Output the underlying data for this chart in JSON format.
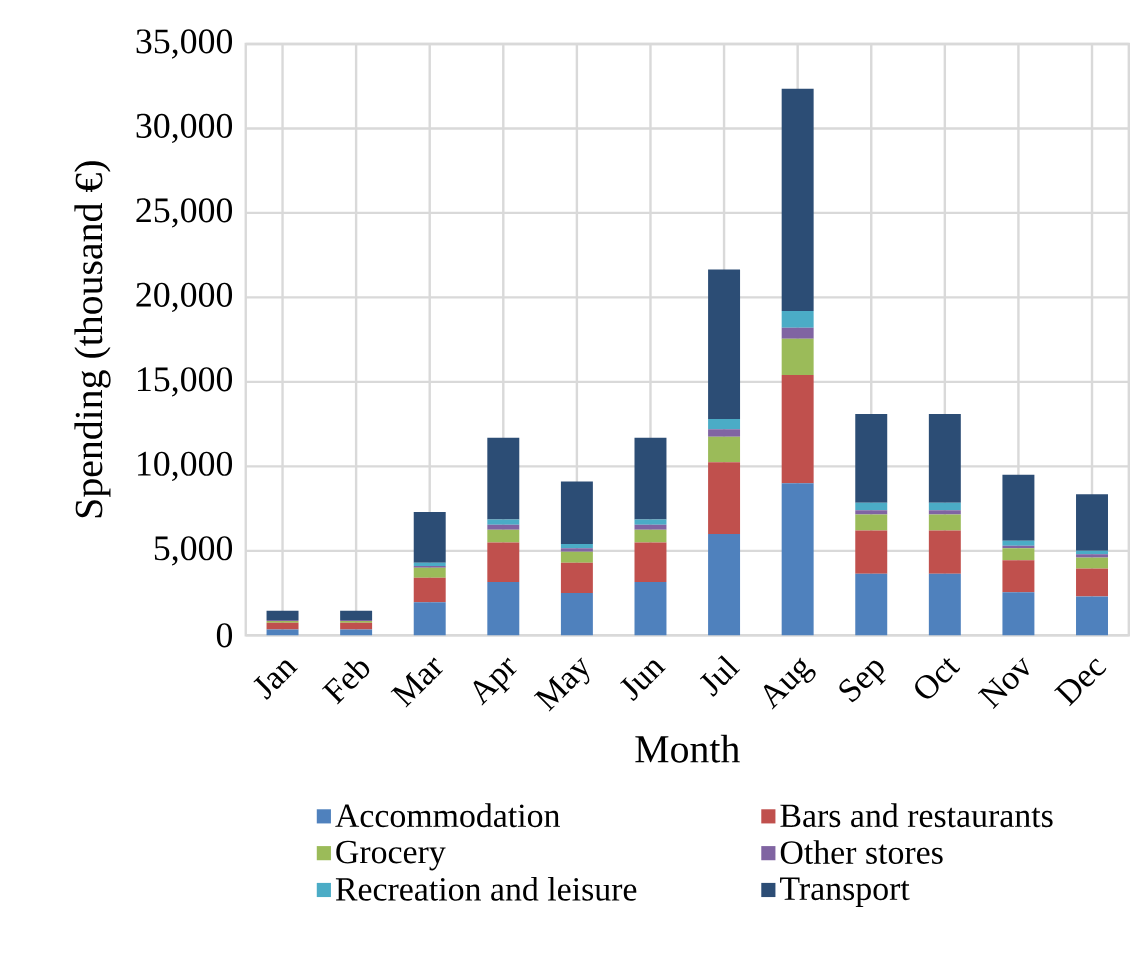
{
  "chart_data": {
    "type": "bar",
    "stacked": true,
    "xlabel": "Month",
    "ylabel": "Spending (thousand €)",
    "categories": [
      "Jan",
      "Feb",
      "Mar",
      "Apr",
      "May",
      "Jun",
      "Jul",
      "Aug",
      "Sep",
      "Oct",
      "Nov",
      "Dec"
    ],
    "series": [
      {
        "name": "Accommodation",
        "color": "#4f81bd",
        "values": [
          350,
          350,
          1950,
          3150,
          2500,
          3150,
          6000,
          9000,
          3650,
          3650,
          2550,
          2300
        ]
      },
      {
        "name": "Bars and restaurants",
        "color": "#c0504d",
        "values": [
          400,
          400,
          1450,
          2350,
          1800,
          2350,
          4250,
          6400,
          2550,
          2550,
          1900,
          1650
        ]
      },
      {
        "name": "Grocery",
        "color": "#9bbb59",
        "values": [
          100,
          100,
          600,
          750,
          650,
          750,
          1500,
          2150,
          950,
          950,
          700,
          650
        ]
      },
      {
        "name": "Other stores",
        "color": "#8064a2",
        "values": [
          50,
          50,
          100,
          300,
          200,
          300,
          450,
          650,
          250,
          250,
          150,
          200
        ]
      },
      {
        "name": "Recreation and leisure",
        "color": "#4bacc6",
        "values": [
          null,
          null,
          200,
          300,
          250,
          300,
          600,
          1000,
          450,
          450,
          300,
          200
        ]
      },
      {
        "name": "Transport",
        "color": "#2c4d75",
        "values": [
          550,
          550,
          3000,
          4850,
          3700,
          4850,
          8850,
          13150,
          5250,
          5250,
          3900,
          3350
        ]
      }
    ],
    "ylim": [
      0,
      35000
    ],
    "yticks": [
      0,
      {
        "value": 5000,
        "label": "5,000"
      },
      {
        "value": 10000,
        "label": "10,000"
      },
      {
        "value": 15000,
        "label": "15,000"
      },
      {
        "value": 20000,
        "label": "20,000"
      },
      {
        "value": 25000,
        "label": "25,000"
      },
      {
        "value": 30000,
        "label": "30,000"
      },
      {
        "value": 35000,
        "label": "35,000"
      }
    ],
    "grid": true,
    "legend": "bottom"
  }
}
